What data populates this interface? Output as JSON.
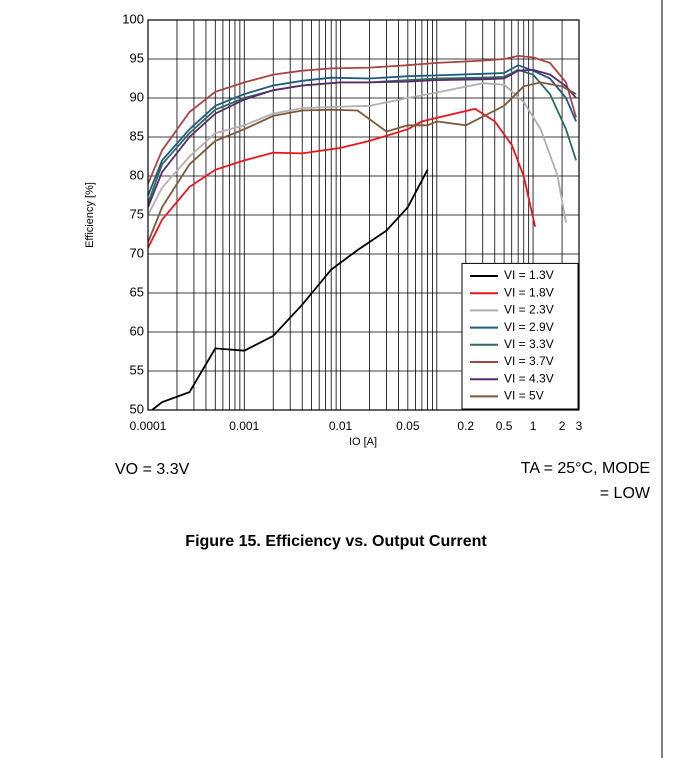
{
  "chart_data": {
    "type": "line",
    "xlabel": "IO [A]",
    "ylabel": "Efficiency [%]",
    "log_x": true,
    "grid": true,
    "xlim": [
      0.0001,
      3
    ],
    "ylim": [
      50,
      100
    ],
    "xticks": [
      0.0001,
      0.001,
      0.01,
      0.05,
      0.2,
      0.5,
      1,
      2,
      3
    ],
    "xminor_ticks": [
      0.0002,
      0.0003,
      0.0004,
      0.0005,
      0.0006,
      0.0007,
      0.0008,
      0.0009,
      0.002,
      0.003,
      0.004,
      0.005,
      0.006,
      0.007,
      0.008,
      0.009,
      0.02,
      0.03,
      0.04,
      0.06,
      0.07,
      0.08,
      0.09,
      0.1,
      0.3,
      0.4,
      0.6,
      0.7,
      0.8,
      0.9
    ],
    "yticks": [
      50,
      55,
      60,
      65,
      70,
      75,
      80,
      85,
      90,
      95,
      100
    ],
    "legend": "lower right",
    "series": [
      {
        "name": "VI = 1.3V",
        "color": "#000000",
        "x": [
          0.00011,
          0.00014,
          0.00027,
          0.0005,
          0.001,
          0.002,
          0.004,
          0.008,
          0.015,
          0.03,
          0.05,
          0.08
        ],
        "values": [
          50,
          51,
          52.3,
          57.9,
          57.6,
          59.5,
          63.5,
          68,
          70.5,
          73,
          76,
          80.8
        ]
      },
      {
        "name": "VI = 1.8V",
        "color": "#e8141e",
        "x": [
          0.0001,
          0.00014,
          0.00027,
          0.0005,
          0.001,
          0.002,
          0.004,
          0.01,
          0.02,
          0.05,
          0.07,
          0.25,
          0.4,
          0.6,
          0.8,
          1.05
        ],
        "values": [
          70.8,
          74.4,
          78.6,
          80.8,
          82,
          83,
          82.9,
          83.6,
          84.5,
          86,
          87,
          88.6,
          87,
          84,
          80,
          73.5
        ]
      },
      {
        "name": "VI = 2.3V",
        "color": "#b0b0b0",
        "x": [
          0.0001,
          0.00014,
          0.00027,
          0.0005,
          0.001,
          0.002,
          0.004,
          0.01,
          0.02,
          0.05,
          0.1,
          0.3,
          0.5,
          0.8,
          1.2,
          1.8,
          2.2
        ],
        "values": [
          75,
          78.5,
          82.5,
          85.5,
          86.5,
          88,
          88.7,
          88.9,
          89,
          90,
          90.7,
          91.9,
          91.7,
          89.5,
          86,
          80,
          74
        ]
      },
      {
        "name": "VI = 2.9V",
        "color": "#1f5a82",
        "x": [
          0.0001,
          0.00014,
          0.00027,
          0.0005,
          0.001,
          0.002,
          0.004,
          0.008,
          0.02,
          0.05,
          0.1,
          0.3,
          0.5,
          0.7,
          1,
          1.5,
          2.2,
          2.8
        ],
        "values": [
          77.5,
          82,
          86,
          89,
          90.5,
          91.6,
          92.2,
          92.6,
          92.5,
          92.8,
          92.9,
          93.1,
          93.2,
          94.2,
          93.5,
          92.5,
          90,
          87
        ]
      },
      {
        "name": "VI = 3.3V",
        "color": "#2e6b5e",
        "x": [
          0.0001,
          0.00014,
          0.00027,
          0.0005,
          0.001,
          0.002,
          0.004,
          0.01,
          0.02,
          0.05,
          0.1,
          0.3,
          0.5,
          0.7,
          1,
          1.5,
          2.2,
          2.8
        ],
        "values": [
          76.5,
          81.5,
          85.5,
          88.5,
          90,
          91,
          91.6,
          92,
          92,
          92.3,
          92.5,
          92.6,
          92.7,
          93.6,
          93,
          90.5,
          86,
          82
        ]
      },
      {
        "name": "VI = 3.7V",
        "color": "#a84545",
        "x": [
          0.0001,
          0.00014,
          0.00027,
          0.0005,
          0.001,
          0.002,
          0.004,
          0.008,
          0.02,
          0.05,
          0.1,
          0.3,
          0.5,
          0.7,
          1,
          1.5,
          2.2,
          2.8
        ],
        "values": [
          79,
          83.3,
          88.2,
          90.8,
          92,
          93,
          93.5,
          93.8,
          93.9,
          94.2,
          94.5,
          94.8,
          95,
          95.4,
          95.2,
          94.5,
          92,
          87.5
        ]
      },
      {
        "name": "VI = 4.3V",
        "color": "#5a2a6a",
        "x": [
          0.0001,
          0.00014,
          0.00027,
          0.0005,
          0.001,
          0.002,
          0.004,
          0.01,
          0.02,
          0.05,
          0.1,
          0.3,
          0.5,
          0.7,
          1,
          1.5,
          2.2,
          2.8
        ],
        "values": [
          76,
          80.5,
          85,
          88,
          89.8,
          91,
          91.6,
          92,
          92,
          92.1,
          92.3,
          92.4,
          92.5,
          93.5,
          93.6,
          93,
          91.5,
          90
        ]
      },
      {
        "name": "VI = 5V",
        "color": "#7a5a3a",
        "x": [
          0.0001,
          0.00014,
          0.00027,
          0.0005,
          0.001,
          0.002,
          0.004,
          0.008,
          0.015,
          0.03,
          0.05,
          0.08,
          0.1,
          0.2,
          0.5,
          0.8,
          1.2,
          2,
          2.8
        ],
        "values": [
          71.5,
          76,
          81.5,
          84.5,
          86,
          87.7,
          88.4,
          88.5,
          88.4,
          85.7,
          86.5,
          86.5,
          87,
          86.5,
          89,
          91.5,
          92,
          91.5,
          90.5
        ]
      }
    ],
    "annotations": [
      "VO = 3.3V",
      "TA = 25°C, MODE",
      "= LOW"
    ],
    "caption": "Figure 15. Efficiency vs. Output Current"
  }
}
